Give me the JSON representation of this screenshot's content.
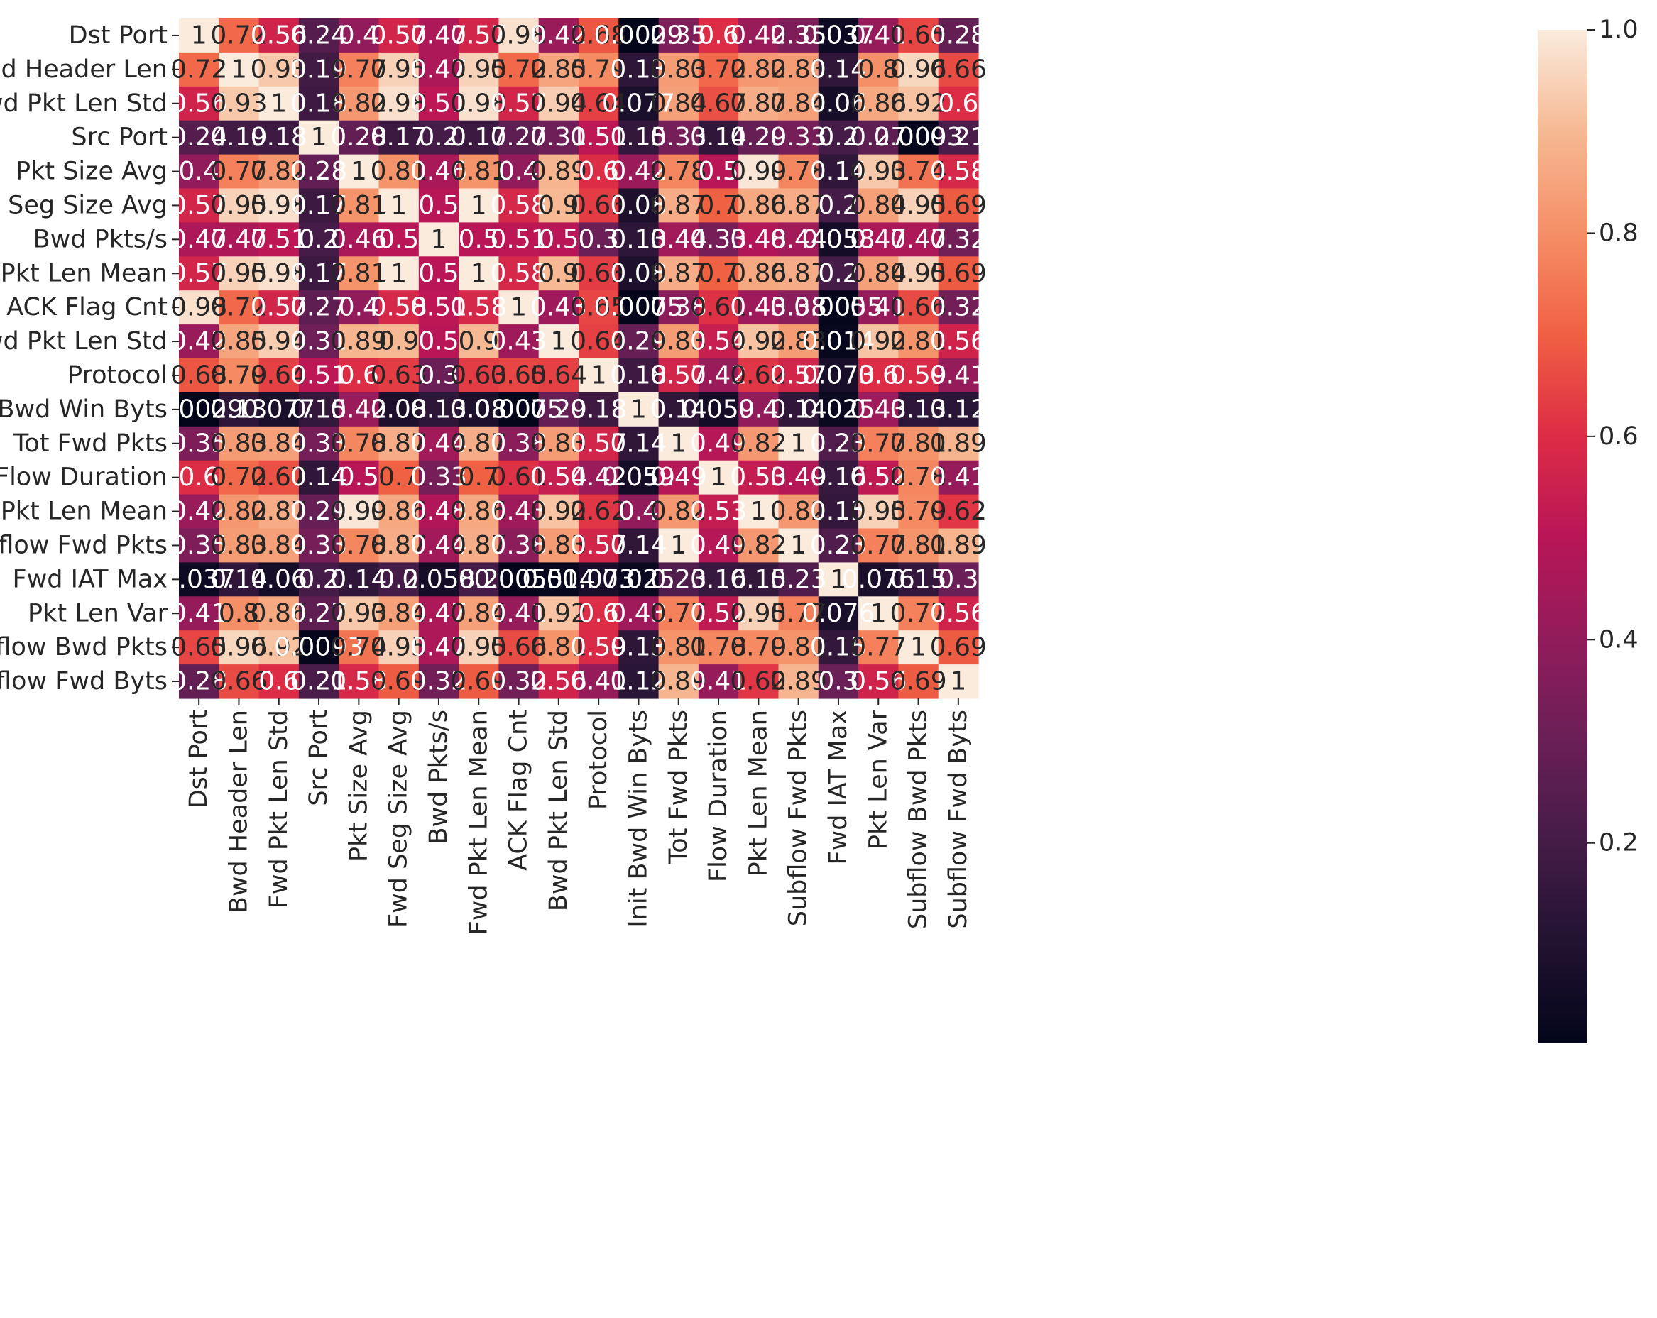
{
  "chart_data": {
    "type": "heatmap",
    "title": "",
    "xlabel": "",
    "ylabel": "",
    "colormap": "rocket",
    "vmin": 0.0,
    "vmax": 1.0,
    "labels": [
      "Dst Port",
      "Bwd Header Len",
      "Fwd Pkt Len Std",
      "Src Port",
      "Pkt Size Avg",
      "Fwd Seg Size Avg",
      "Bwd Pkts/s",
      "Fwd Pkt Len Mean",
      "ACK Flag Cnt",
      "Bwd Pkt Len Std",
      "Protocol",
      "Init Bwd Win Byts",
      "Tot Fwd Pkts",
      "Flow Duration",
      "Pkt Len Mean",
      "Subflow Fwd Pkts",
      "Fwd IAT Max",
      "Pkt Len Var",
      "Subflow Bwd Pkts",
      "Subflow Fwd Byts"
    ],
    "values": [
      [
        1,
        0.72,
        0.56,
        0.24,
        0.4,
        0.57,
        0.47,
        0.57,
        0.98,
        0.42,
        0.68,
        0.0029,
        0.35,
        0.6,
        0.42,
        0.35,
        0.037,
        0.41,
        0.65,
        0.28
      ],
      [
        0.72,
        1,
        0.93,
        0.19,
        0.77,
        0.95,
        0.47,
        0.95,
        0.72,
        0.85,
        0.79,
        0.13,
        0.83,
        0.72,
        0.82,
        0.83,
        0.14,
        0.8,
        0.96,
        0.66
      ],
      [
        0.56,
        0.93,
        1,
        0.18,
        0.82,
        0.98,
        0.51,
        0.98,
        0.57,
        0.94,
        0.64,
        0.077,
        0.84,
        0.67,
        0.87,
        0.84,
        0.06,
        0.86,
        0.92,
        0.6
      ],
      [
        0.24,
        0.19,
        0.18,
        1,
        0.28,
        0.17,
        0.2,
        0.17,
        0.27,
        0.31,
        0.51,
        0.15,
        0.33,
        0.14,
        0.29,
        0.33,
        0.2,
        0.27,
        0.0093,
        0.21
      ],
      [
        0.4,
        0.77,
        0.82,
        0.28,
        1,
        0.81,
        0.46,
        0.81,
        0.4,
        0.89,
        0.6,
        0.42,
        0.78,
        0.5,
        0.99,
        0.78,
        0.14,
        0.93,
        0.74,
        0.58
      ],
      [
        0.57,
        0.95,
        0.98,
        0.17,
        0.81,
        1,
        0.5,
        1,
        0.58,
        0.9,
        0.63,
        0.08,
        0.87,
        0.7,
        0.86,
        0.87,
        0.2,
        0.84,
        0.95,
        0.69
      ],
      [
        0.47,
        0.47,
        0.51,
        0.2,
        0.46,
        0.5,
        1,
        0.5,
        0.51,
        0.5,
        0.3,
        0.13,
        0.44,
        0.33,
        0.48,
        0.44,
        0.058,
        0.47,
        0.47,
        0.32
      ],
      [
        0.57,
        0.95,
        0.98,
        0.17,
        0.81,
        1,
        0.5,
        1,
        0.58,
        0.9,
        0.63,
        0.08,
        0.87,
        0.7,
        0.86,
        0.87,
        0.2,
        0.84,
        0.95,
        0.69
      ],
      [
        0.98,
        0.72,
        0.57,
        0.27,
        0.4,
        0.58,
        0.51,
        0.58,
        1,
        0.43,
        0.65,
        0.0075,
        0.38,
        0.61,
        0.43,
        0.38,
        0.0055,
        0.41,
        0.66,
        0.32
      ],
      [
        0.42,
        0.85,
        0.94,
        0.31,
        0.89,
        0.9,
        0.5,
        0.9,
        0.43,
        1,
        0.64,
        0.29,
        0.83,
        0.54,
        0.92,
        0.83,
        0.014,
        0.92,
        0.81,
        0.56
      ],
      [
        0.68,
        0.79,
        0.64,
        0.51,
        0.6,
        0.63,
        0.3,
        0.63,
        0.65,
        0.64,
        1,
        0.18,
        0.57,
        0.42,
        0.62,
        0.57,
        0.073,
        0.6,
        0.59,
        0.41
      ],
      [
        0.0029,
        0.13,
        0.077,
        0.15,
        0.42,
        0.08,
        0.13,
        0.08,
        0.0075,
        0.29,
        0.18,
        1,
        0.14,
        0.059,
        0.4,
        0.14,
        0.025,
        0.43,
        0.13,
        0.12
      ],
      [
        0.35,
        0.83,
        0.84,
        0.33,
        0.78,
        0.87,
        0.44,
        0.87,
        0.38,
        0.83,
        0.57,
        0.14,
        1,
        0.49,
        0.82,
        1,
        0.23,
        0.77,
        0.81,
        0.89
      ],
      [
        0.6,
        0.72,
        0.67,
        0.14,
        0.5,
        0.7,
        0.33,
        0.7,
        0.61,
        0.54,
        0.42,
        0.059,
        0.49,
        1,
        0.53,
        0.49,
        0.16,
        0.52,
        0.78,
        0.41
      ],
      [
        0.42,
        0.82,
        0.87,
        0.29,
        0.99,
        0.86,
        0.48,
        0.86,
        0.43,
        0.92,
        0.62,
        0.4,
        0.82,
        0.53,
        1,
        0.82,
        0.15,
        0.95,
        0.79,
        0.62
      ],
      [
        0.35,
        0.83,
        0.84,
        0.33,
        0.78,
        0.87,
        0.44,
        0.87,
        0.38,
        0.83,
        0.57,
        0.14,
        1,
        0.49,
        0.82,
        1,
        0.23,
        0.77,
        0.81,
        0.89
      ],
      [
        0.037,
        0.14,
        0.06,
        0.2,
        0.14,
        0.2,
        0.058,
        0.2,
        0.0055,
        0.014,
        0.073,
        0.025,
        0.23,
        0.16,
        0.15,
        0.23,
        1,
        0.076,
        0.15,
        0.3
      ],
      [
        0.41,
        0.8,
        0.86,
        0.27,
        0.93,
        0.84,
        0.47,
        0.84,
        0.41,
        0.92,
        0.6,
        0.43,
        0.77,
        0.52,
        0.95,
        0.77,
        0.076,
        1,
        0.77,
        0.56
      ],
      [
        0.65,
        0.96,
        0.92,
        0.0093,
        0.74,
        0.95,
        0.47,
        0.95,
        0.66,
        0.81,
        0.59,
        0.13,
        0.81,
        0.78,
        0.79,
        0.81,
        0.15,
        0.77,
        1,
        0.69
      ],
      [
        0.28,
        0.66,
        0.6,
        0.21,
        0.58,
        0.69,
        0.32,
        0.69,
        0.32,
        0.56,
        0.41,
        0.12,
        0.89,
        0.41,
        0.62,
        0.89,
        0.3,
        0.56,
        0.69,
        1
      ]
    ],
    "colorbar": {
      "ticks": [
        0.2,
        0.4,
        0.6,
        0.8,
        1.0
      ],
      "tick_labels": [
        "0.2",
        "0.4",
        "0.6",
        "0.8",
        "1.0"
      ]
    }
  }
}
